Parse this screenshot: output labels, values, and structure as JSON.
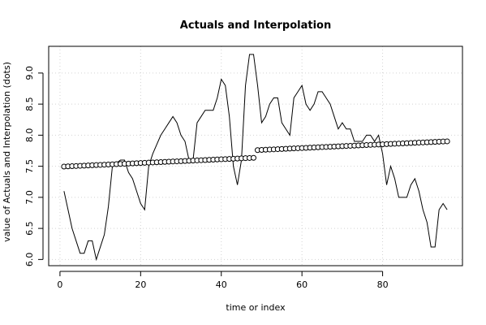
{
  "chart_data": {
    "type": "line",
    "title": "Actuals and Interpolation",
    "xlabel": "time or index",
    "ylabel": "value of Actuals and Interpolation (dots)",
    "xlim": [
      -2.8,
      99.8
    ],
    "ylim": [
      5.9,
      9.43
    ],
    "x_ticks": [
      0,
      20,
      40,
      60,
      80
    ],
    "x_tick_labels": [
      "0",
      "20",
      "40",
      "60",
      "80"
    ],
    "y_ticks": [
      6.0,
      6.5,
      7.0,
      7.5,
      8.0,
      8.5,
      9.0
    ],
    "y_tick_labels": [
      "6.0",
      "6.5",
      "7.0",
      "7.5",
      "8.0",
      "8.5",
      "9.0"
    ],
    "grid": true,
    "series": [
      {
        "style": "line",
        "x": [
          1,
          2,
          3,
          4,
          5,
          6,
          7,
          8,
          9,
          10,
          11,
          12,
          13,
          14,
          15,
          16,
          17,
          18,
          19,
          20,
          21,
          22,
          23,
          24,
          25,
          26,
          27,
          28,
          29,
          30,
          31,
          32,
          33,
          34,
          35,
          36,
          37,
          38,
          39,
          40,
          41,
          42,
          43,
          44,
          45,
          46,
          47,
          48,
          49,
          50,
          51,
          52,
          53,
          54,
          55,
          56,
          57,
          58,
          59,
          60,
          61,
          62,
          63,
          64,
          65,
          66,
          67,
          68,
          69,
          70,
          71,
          72,
          73,
          74,
          75,
          76,
          77,
          78,
          79,
          80,
          81,
          82,
          83,
          84,
          85,
          86,
          87,
          88,
          89,
          90,
          91,
          92,
          93,
          94,
          95,
          96
        ],
        "values": [
          7.1,
          6.8,
          6.5,
          6.3,
          6.1,
          6.1,
          6.3,
          6.3,
          6.0,
          6.2,
          6.4,
          6.85,
          7.5,
          7.55,
          7.6,
          7.6,
          7.4,
          7.3,
          7.1,
          6.9,
          6.8,
          7.5,
          7.7,
          7.85,
          8.0,
          8.1,
          8.2,
          8.3,
          8.2,
          8.0,
          7.9,
          7.6,
          7.6,
          8.2,
          8.3,
          8.4,
          8.4,
          8.4,
          8.6,
          8.9,
          8.8,
          8.3,
          7.5,
          7.2,
          7.6,
          8.8,
          9.3,
          9.3,
          8.8,
          8.2,
          8.3,
          8.5,
          8.6,
          8.6,
          8.2,
          8.1,
          8.0,
          8.6,
          8.7,
          8.8,
          8.5,
          8.4,
          8.5,
          8.7,
          8.7,
          8.6,
          8.5,
          8.3,
          8.1,
          8.2,
          8.1,
          8.1,
          7.9,
          7.9,
          7.9,
          8.0,
          8.0,
          7.9,
          8.0,
          7.7,
          7.2,
          7.5,
          7.3,
          7.0,
          7.0,
          7.0,
          7.2,
          7.3,
          7.1,
          6.8,
          6.6,
          6.2,
          6.2,
          6.8,
          6.9,
          6.8
        ]
      },
      {
        "style": "points",
        "x": [
          1,
          2,
          3,
          4,
          5,
          6,
          7,
          8,
          9,
          10,
          11,
          12,
          13,
          14,
          15,
          16,
          17,
          18,
          19,
          20,
          21,
          22,
          23,
          24,
          25,
          26,
          27,
          28,
          29,
          30,
          31,
          32,
          33,
          34,
          35,
          36,
          37,
          38,
          39,
          40,
          41,
          42,
          43,
          44,
          45,
          46,
          47,
          48,
          49,
          50,
          51,
          52,
          53,
          54,
          55,
          56,
          57,
          58,
          59,
          60,
          61,
          62,
          63,
          64,
          65,
          66,
          67,
          68,
          69,
          70,
          71,
          72,
          73,
          74,
          75,
          76,
          77,
          78,
          79,
          80,
          81,
          82,
          83,
          84,
          85,
          86,
          87,
          88,
          89,
          90,
          91,
          92,
          93,
          94,
          95,
          96
        ],
        "values": [
          7.495,
          7.498,
          7.501,
          7.504,
          7.507,
          7.51,
          7.513,
          7.516,
          7.519,
          7.522,
          7.525,
          7.528,
          7.531,
          7.534,
          7.537,
          7.54,
          7.543,
          7.546,
          7.549,
          7.552,
          7.555,
          7.558,
          7.561,
          7.564,
          7.567,
          7.57,
          7.573,
          7.576,
          7.579,
          7.582,
          7.585,
          7.588,
          7.591,
          7.594,
          7.597,
          7.6,
          7.603,
          7.606,
          7.609,
          7.612,
          7.615,
          7.618,
          7.621,
          7.624,
          7.627,
          7.63,
          7.633,
          7.636,
          7.76,
          7.763,
          7.766,
          7.769,
          7.772,
          7.775,
          7.778,
          7.781,
          7.784,
          7.787,
          7.79,
          7.793,
          7.796,
          7.799,
          7.802,
          7.805,
          7.808,
          7.811,
          7.814,
          7.817,
          7.82,
          7.823,
          7.826,
          7.829,
          7.832,
          7.835,
          7.838,
          7.841,
          7.844,
          7.847,
          7.85,
          7.853,
          7.856,
          7.859,
          7.862,
          7.865,
          7.868,
          7.871,
          7.874,
          7.877,
          7.88,
          7.883,
          7.886,
          7.889,
          7.892,
          7.895,
          7.898,
          7.901
        ]
      }
    ]
  }
}
